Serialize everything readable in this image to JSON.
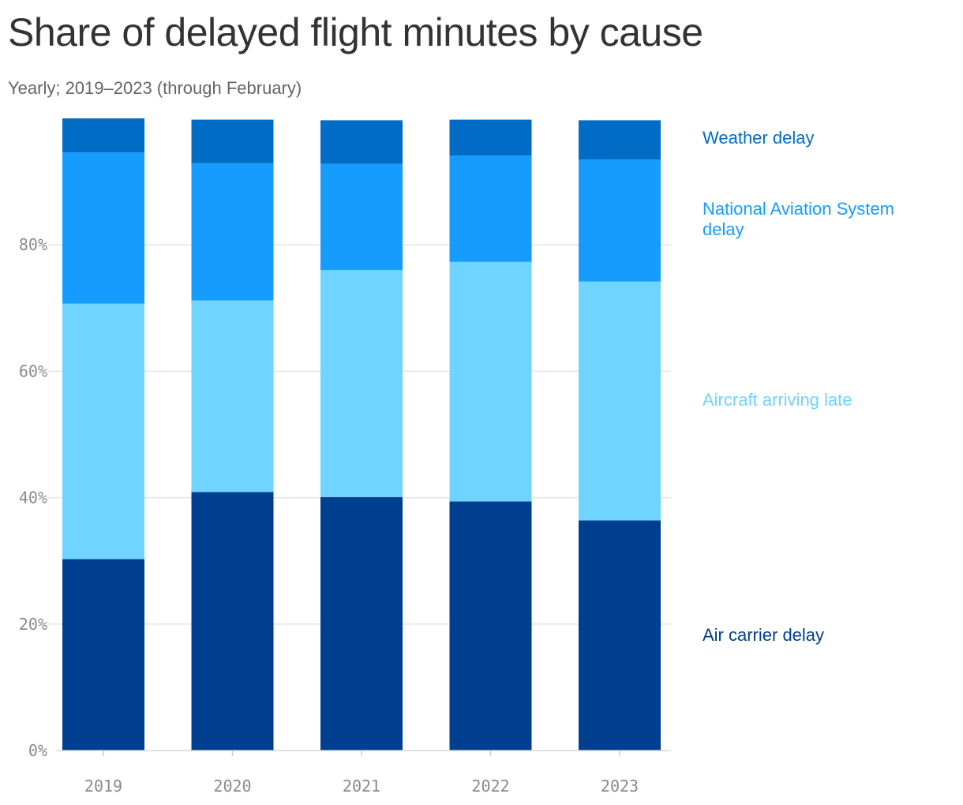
{
  "title": "Share of delayed flight minutes by cause",
  "subtitle": "Yearly; 2019–2023 (through February)",
  "chart_data": {
    "type": "bar",
    "stacked": true,
    "categories": [
      "2019",
      "2020",
      "2021",
      "2022",
      "2023"
    ],
    "series": [
      {
        "name": "Air carrier delay",
        "color": "#003f8f",
        "values": [
          30.3,
          40.9,
          40.1,
          39.4,
          36.4
        ]
      },
      {
        "name": "Aircraft arriving late",
        "color": "#6fd4ff",
        "values": [
          40.4,
          30.3,
          35.9,
          37.9,
          37.8
        ]
      },
      {
        "name": "National Aviation System delay",
        "color": "#169cff",
        "values": [
          23.9,
          21.7,
          16.8,
          16.8,
          19.3
        ]
      },
      {
        "name": "Weather delay",
        "color": "#006cc5",
        "values": [
          5.4,
          6.9,
          6.9,
          5.7,
          6.2
        ]
      }
    ],
    "ylim": [
      0,
      100
    ],
    "yticks": [
      "0%",
      "20%",
      "40%",
      "60%",
      "80%"
    ],
    "ytick_values": [
      0,
      20,
      40,
      60,
      80
    ],
    "grid": true,
    "legend_position": "right, inline labels"
  }
}
